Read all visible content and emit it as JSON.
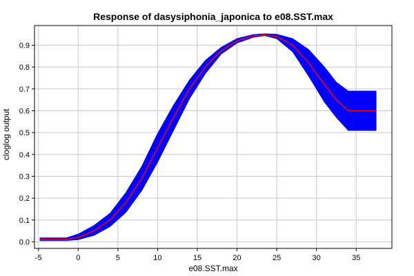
{
  "chart_data": {
    "type": "line",
    "title": "Response of dasysiphonia_japonica to e08.SST.max",
    "xlabel": "e08.SST.max",
    "ylabel": "cloglog output",
    "xlim": [
      -5.5,
      39.5
    ],
    "ylim": [
      -0.03,
      0.99
    ],
    "xticks": [
      -5,
      0,
      5,
      10,
      15,
      20,
      25,
      30,
      35
    ],
    "yticks": [
      0.0,
      0.1,
      0.2,
      0.3,
      0.4,
      0.5,
      0.6,
      0.7,
      0.8,
      0.9
    ],
    "grid": true,
    "colors": {
      "mean_line": "#ff0000",
      "band": "#0000ff"
    },
    "x": [
      -4.8,
      -1.5,
      0,
      2,
      4,
      6,
      8,
      10,
      12,
      14,
      16,
      18,
      20,
      22,
      23.5,
      25,
      27,
      29,
      31,
      32.5,
      34,
      36,
      37.5
    ],
    "series": [
      {
        "role": "mean",
        "values": [
          0.012,
          0.012,
          0.02,
          0.05,
          0.1,
          0.18,
          0.29,
          0.43,
          0.57,
          0.7,
          0.8,
          0.875,
          0.92,
          0.942,
          0.948,
          0.94,
          0.9,
          0.82,
          0.72,
          0.65,
          0.6,
          0.6,
          0.6
        ]
      },
      {
        "role": "upper",
        "values": [
          0.018,
          0.018,
          0.035,
          0.075,
          0.13,
          0.225,
          0.345,
          0.495,
          0.625,
          0.74,
          0.83,
          0.89,
          0.93,
          0.948,
          0.952,
          0.95,
          0.93,
          0.88,
          0.8,
          0.73,
          0.69,
          0.69,
          0.69
        ]
      },
      {
        "role": "lower",
        "values": [
          0.006,
          0.006,
          0.01,
          0.03,
          0.07,
          0.135,
          0.235,
          0.365,
          0.51,
          0.655,
          0.77,
          0.86,
          0.91,
          0.936,
          0.944,
          0.93,
          0.87,
          0.76,
          0.64,
          0.57,
          0.51,
          0.51,
          0.51
        ]
      }
    ]
  }
}
